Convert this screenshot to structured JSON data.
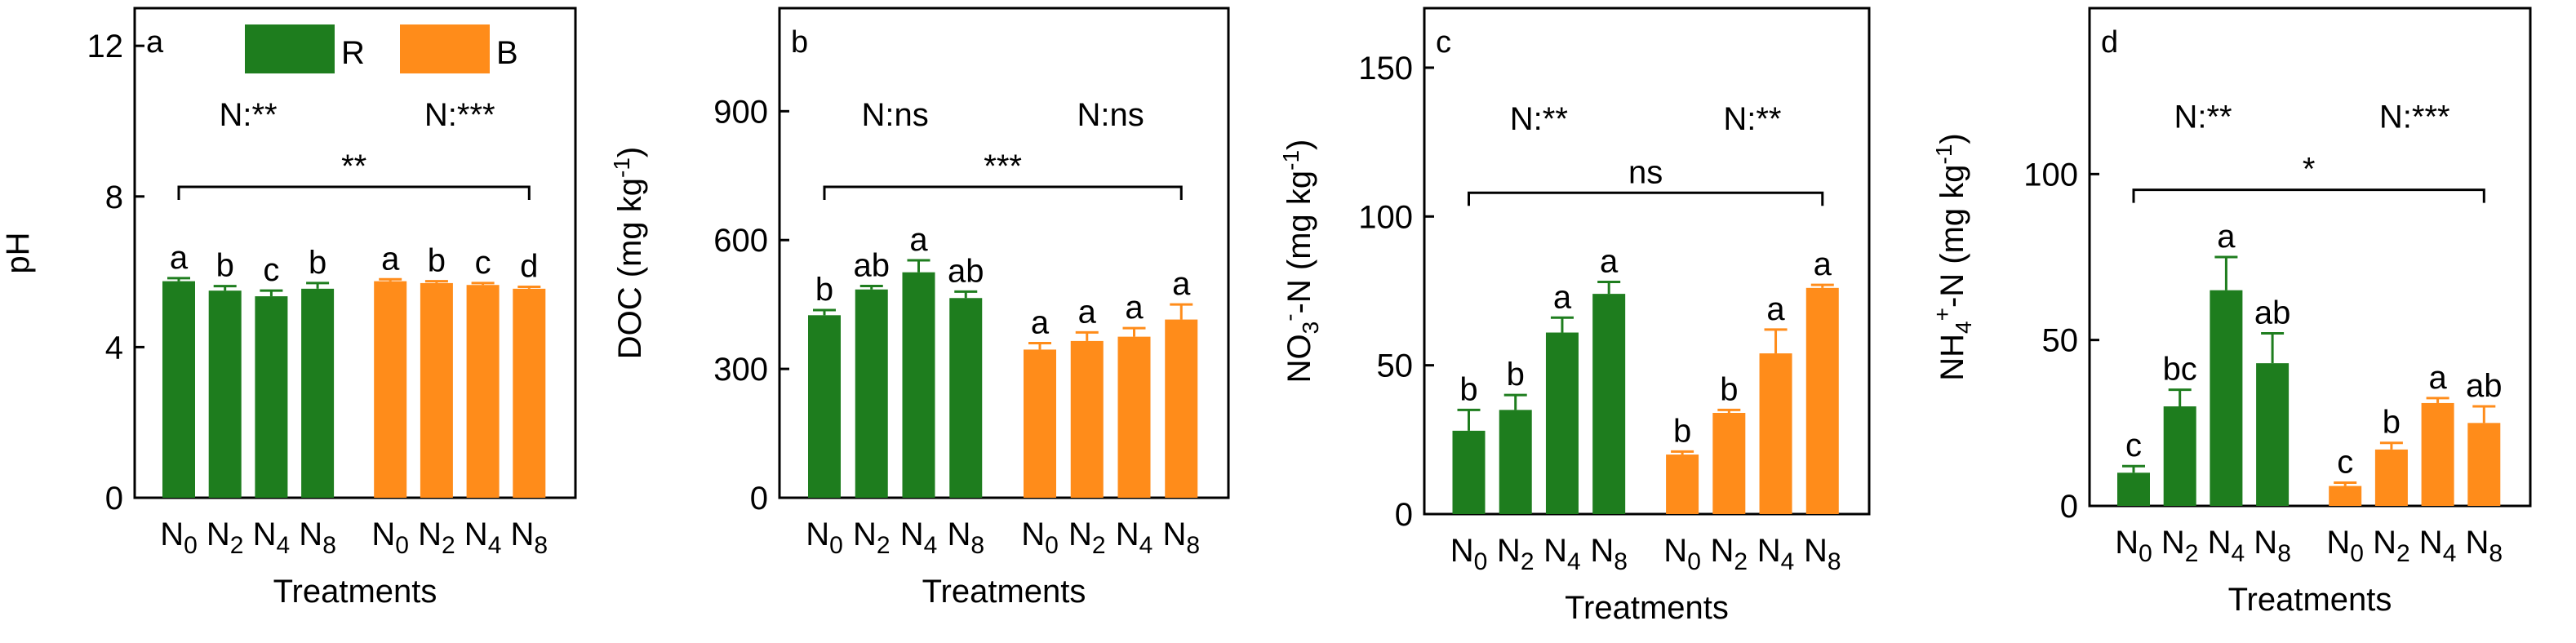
{
  "figure": {
    "legend": [
      {
        "name": "R",
        "color": "#1e7d1e"
      },
      {
        "name": "B",
        "color": "#ff8c1a"
      }
    ],
    "xlabel": "Treatments",
    "categories": [
      [
        "N",
        "0"
      ],
      [
        "N",
        "2"
      ],
      [
        "N",
        "4"
      ],
      [
        "N",
        "8"
      ]
    ]
  },
  "chart_data": [
    {
      "type": "bar",
      "panel": "a",
      "ylabel": "pH",
      "yticks": [
        0,
        4,
        8,
        12
      ],
      "ylim": [
        0,
        13
      ],
      "categories": [
        "N0",
        "N2",
        "N4",
        "N8"
      ],
      "series": [
        {
          "name": "R",
          "values": [
            5.75,
            5.5,
            5.35,
            5.55
          ],
          "errors": [
            0.08,
            0.12,
            0.15,
            0.15
          ],
          "letters": [
            "a",
            "b",
            "c",
            "b"
          ]
        },
        {
          "name": "B",
          "values": [
            5.75,
            5.7,
            5.65,
            5.55
          ],
          "errors": [
            0.05,
            0.05,
            0.05,
            0.05
          ],
          "letters": [
            "a",
            "b",
            "c",
            "d"
          ]
        }
      ],
      "n_effect": [
        "N:**",
        "N:***"
      ],
      "overall": "**"
    },
    {
      "type": "bar",
      "panel": "b",
      "ylabel": "DOC (mg kg-1)",
      "yticks": [
        0,
        300,
        600,
        900
      ],
      "ylim": [
        0,
        1140
      ],
      "categories": [
        "N0",
        "N2",
        "N4",
        "N8"
      ],
      "series": [
        {
          "name": "R",
          "values": [
            425,
            485,
            525,
            465
          ],
          "errors": [
            12,
            8,
            28,
            15
          ],
          "letters": [
            "b",
            "ab",
            "a",
            "ab"
          ]
        },
        {
          "name": "B",
          "values": [
            345,
            365,
            375,
            415
          ],
          "errors": [
            15,
            20,
            20,
            35
          ],
          "letters": [
            "a",
            "a",
            "a",
            "a"
          ]
        }
      ],
      "n_effect": [
        "N:ns",
        "N:ns"
      ],
      "overall": "***"
    },
    {
      "type": "bar",
      "panel": "c",
      "ylabel": "NO3--N (mg kg-1)",
      "yticks": [
        0,
        50,
        100,
        150
      ],
      "ylim": [
        0,
        170
      ],
      "categories": [
        "N0",
        "N2",
        "N4",
        "N8"
      ],
      "series": [
        {
          "name": "R",
          "values": [
            28,
            35,
            61,
            74
          ],
          "errors": [
            7,
            5,
            5,
            4
          ],
          "letters": [
            "b",
            "b",
            "a",
            "a"
          ]
        },
        {
          "name": "B",
          "values": [
            20,
            34,
            54,
            76
          ],
          "errors": [
            1,
            1,
            8,
            1
          ],
          "letters": [
            "b",
            "b",
            "a",
            "a"
          ]
        }
      ],
      "n_effect": [
        "N:**",
        "N:**"
      ],
      "overall": "ns"
    },
    {
      "type": "bar",
      "panel": "d",
      "ylabel": "NH4+-N (mg kg-1)",
      "yticks": [
        0,
        50,
        100
      ],
      "ylim": [
        0,
        150
      ],
      "categories": [
        "N0",
        "N2",
        "N4",
        "N8"
      ],
      "series": [
        {
          "name": "R",
          "values": [
            10,
            30,
            65,
            43
          ],
          "errors": [
            2,
            5,
            10,
            9
          ],
          "letters": [
            "c",
            "bc",
            "a",
            "ab"
          ]
        },
        {
          "name": "B",
          "values": [
            6,
            17,
            31,
            25
          ],
          "errors": [
            1,
            2,
            1.5,
            5
          ],
          "letters": [
            "c",
            "b",
            "a",
            "ab"
          ]
        }
      ],
      "n_effect": [
        "N:**",
        "N:***"
      ],
      "overall": "*"
    }
  ]
}
